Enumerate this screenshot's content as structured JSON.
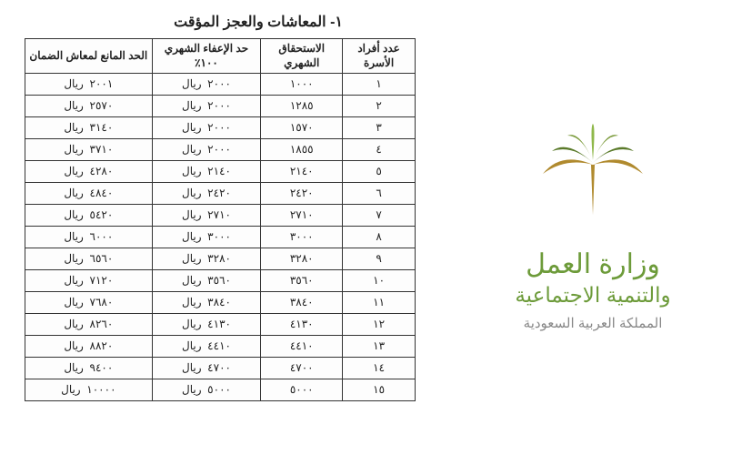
{
  "ministry": {
    "line1": "وزارة العمل",
    "line2": "والتنمية الاجتماعية",
    "country": "المملكة العربية السعودية",
    "logo_colors": {
      "gold": "#b08a2e",
      "green_dark": "#5a7a2a",
      "green_mid": "#7a9a3a",
      "green_light": "#8fb84a"
    }
  },
  "table": {
    "title": "١-  المعاشات والعجز المؤقت",
    "headers": {
      "family": "عدد أفراد الأسرة",
      "monthly": "الاستحقاق الشهري",
      "exempt": "حد الإعفاء الشهري ١٠٠٪",
      "limit": "الحد المانع لمعاش الضمان"
    },
    "currency": "ريال",
    "rows": [
      {
        "n": "١",
        "monthly": "١٠٠٠",
        "exempt": "٢٠٠٠",
        "limit": "٢٠٠١"
      },
      {
        "n": "٢",
        "monthly": "١٢٨٥",
        "exempt": "٢٠٠٠",
        "limit": "٢٥٧٠"
      },
      {
        "n": "٣",
        "monthly": "١٥٧٠",
        "exempt": "٢٠٠٠",
        "limit": "٣١٤٠"
      },
      {
        "n": "٤",
        "monthly": "١٨٥٥",
        "exempt": "٢٠٠٠",
        "limit": "٣٧١٠"
      },
      {
        "n": "٥",
        "monthly": "٢١٤٠",
        "exempt": "٢١٤٠",
        "limit": "٤٢٨٠"
      },
      {
        "n": "٦",
        "monthly": "٢٤٢٠",
        "exempt": "٢٤٢٠",
        "limit": "٤٨٤٠"
      },
      {
        "n": "٧",
        "monthly": "٢٧١٠",
        "exempt": "٢٧١٠",
        "limit": "٥٤٢٠"
      },
      {
        "n": "٨",
        "monthly": "٣٠٠٠",
        "exempt": "٣٠٠٠",
        "limit": "٦٠٠٠"
      },
      {
        "n": "٩",
        "monthly": "٣٢٨٠",
        "exempt": "٣٢٨٠",
        "limit": "٦٥٦٠"
      },
      {
        "n": "١٠",
        "monthly": "٣٥٦٠",
        "exempt": "٣٥٦٠",
        "limit": "٧١٢٠"
      },
      {
        "n": "١١",
        "monthly": "٣٨٤٠",
        "exempt": "٣٨٤٠",
        "limit": "٧٦٨٠"
      },
      {
        "n": "١٢",
        "monthly": "٤١٣٠",
        "exempt": "٤١٣٠",
        "limit": "٨٢٦٠"
      },
      {
        "n": "١٣",
        "monthly": "٤٤١٠",
        "exempt": "٤٤١٠",
        "limit": "٨٨٢٠"
      },
      {
        "n": "١٤",
        "monthly": "٤٧٠٠",
        "exempt": "٤٧٠٠",
        "limit": "٩٤٠٠"
      },
      {
        "n": "١٥",
        "monthly": "٥٠٠٠",
        "exempt": "٥٠٠٠",
        "limit": "١٠٠٠٠"
      }
    ]
  }
}
